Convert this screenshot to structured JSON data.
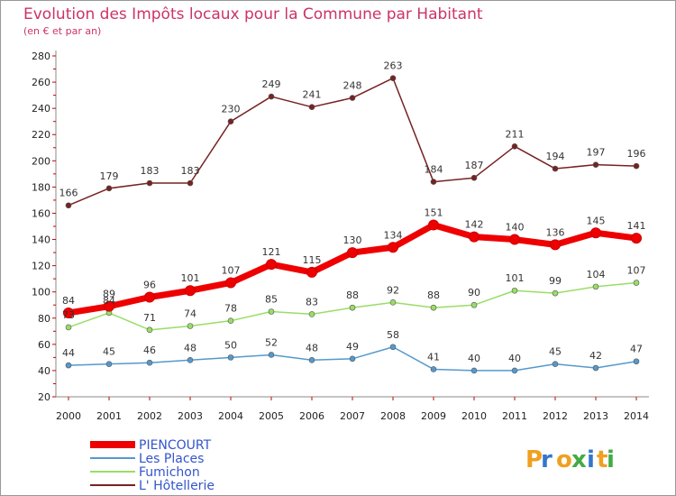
{
  "chart_data": {
    "type": "line",
    "title": "Evolution des Impôts locaux pour la Commune par Habitant",
    "subtitle": "(en € et par an)",
    "x": [
      "2000",
      "2001",
      "2002",
      "2003",
      "2004",
      "2005",
      "2006",
      "2007",
      "2008",
      "2009",
      "2010",
      "2011",
      "2012",
      "2013",
      "2014"
    ],
    "ylim": [
      20,
      280
    ],
    "yticks": [
      20,
      40,
      60,
      80,
      100,
      120,
      140,
      160,
      180,
      200,
      220,
      240,
      260,
      280
    ],
    "grid": false,
    "legend_position": "bottom-left",
    "series": [
      {
        "name": "PIENCOURT",
        "color": "#ee0000",
        "values": [
          84,
          89,
          96,
          101,
          107,
          121,
          115,
          130,
          134,
          151,
          142,
          140,
          136,
          145,
          141
        ]
      },
      {
        "name": "Les Places",
        "color": "#5599cc",
        "values": [
          44,
          45,
          46,
          48,
          50,
          52,
          48,
          49,
          58,
          41,
          40,
          40,
          45,
          42,
          47
        ]
      },
      {
        "name": "Fumichon",
        "color": "#99dd66",
        "values": [
          73,
          84,
          71,
          74,
          78,
          85,
          83,
          88,
          92,
          88,
          90,
          101,
          99,
          104,
          107
        ]
      },
      {
        "name": "L' Hôtellerie",
        "color": "#772222",
        "values": [
          166,
          179,
          183,
          183,
          230,
          249,
          241,
          248,
          263,
          184,
          187,
          211,
          194,
          197,
          196
        ]
      }
    ],
    "logo": "Proxiti"
  }
}
